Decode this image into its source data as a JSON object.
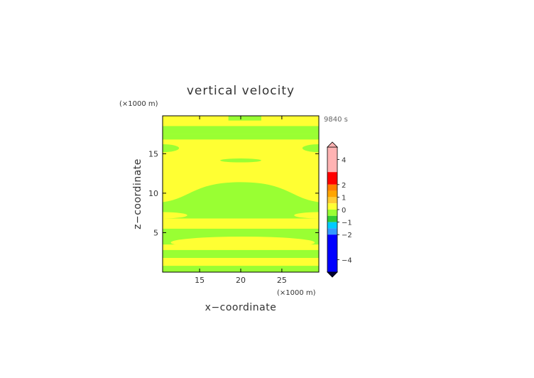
{
  "chart_data": {
    "type": "heatmap",
    "title": "vertical velocity",
    "xlabel": "x−coordinate",
    "ylabel": "z−coordinate",
    "x_unit": "(×1000 m)",
    "y_unit": "(×1000 m)",
    "time": "9840 s",
    "xlim": [
      10.5,
      29.5
    ],
    "ylim": [
      0,
      19.8
    ],
    "x_ticks": [
      15,
      20,
      25
    ],
    "y_ticks": [
      5,
      10,
      15
    ],
    "x_tick_labels": [
      "15",
      "20",
      "25"
    ],
    "y_tick_labels": [
      "5",
      "10",
      "15"
    ],
    "background_level_color": "#ffff33",
    "regions": [
      {
        "level": "green",
        "shape": "band",
        "z": [
          19.2,
          19.8
        ],
        "x": [
          18.5,
          22.5
        ]
      },
      {
        "level": "green",
        "shape": "band",
        "z": [
          17.5,
          18.5
        ],
        "x": [
          10.5,
          29.5
        ]
      },
      {
        "level": "green",
        "shape": "band",
        "z": [
          16.8,
          17.5
        ],
        "x": [
          10.5,
          29.5
        ]
      },
      {
        "level": "green",
        "shape": "lobe",
        "z": [
          15.2,
          16.2
        ],
        "x": [
          10.5,
          12.5
        ]
      },
      {
        "level": "green",
        "shape": "lobe",
        "z": [
          15.2,
          16.2
        ],
        "x": [
          27.5,
          29.5
        ]
      },
      {
        "level": "green",
        "shape": "ellipse",
        "z": [
          13.9,
          14.4
        ],
        "x": [
          17.5,
          22.5
        ]
      },
      {
        "level": "green",
        "shape": "dome",
        "z": [
          6.8,
          11.4
        ],
        "x": [
          10.5,
          29.5
        ]
      },
      {
        "level": "yellow",
        "shape": "lobe",
        "z": [
          6.8,
          7.6
        ],
        "x": [
          10.5,
          13.5
        ]
      },
      {
        "level": "yellow",
        "shape": "lobe",
        "z": [
          6.8,
          7.6
        ],
        "x": [
          26.5,
          29.5
        ]
      },
      {
        "level": "yellow",
        "shape": "ellipse",
        "z": [
          5.5,
          6.8
        ],
        "x": [
          13.5,
          27.0
        ]
      },
      {
        "level": "green",
        "shape": "band",
        "z": [
          3.5,
          5.5
        ],
        "x": [
          10.5,
          29.5
        ]
      },
      {
        "level": "yellow",
        "shape": "ellipse",
        "z": [
          3.0,
          4.5
        ],
        "x": [
          11.5,
          29.0
        ]
      },
      {
        "level": "green",
        "shape": "band",
        "z": [
          1.8,
          2.8
        ],
        "x": [
          10.5,
          29.5
        ]
      },
      {
        "level": "green",
        "shape": "band",
        "z": [
          0.0,
          0.8
        ],
        "x": [
          10.5,
          29.5
        ]
      }
    ],
    "colorbar": {
      "levels": [
        {
          "from": 3.0,
          "to": 5.0,
          "color": "#ffb3b3"
        },
        {
          "from": 2.0,
          "to": 3.0,
          "color": "#ff0000"
        },
        {
          "from": 1.5,
          "to": 2.0,
          "color": "#ff7f00"
        },
        {
          "from": 1.0,
          "to": 1.5,
          "color": "#ffa500"
        },
        {
          "from": 0.5,
          "to": 1.0,
          "color": "#ffcc33"
        },
        {
          "from": 0.0,
          "to": 0.5,
          "color": "#ffff33"
        },
        {
          "from": -0.5,
          "to": 0.0,
          "color": "#99ff33"
        },
        {
          "from": -1.0,
          "to": -0.5,
          "color": "#33cc33"
        },
        {
          "from": -1.5,
          "to": -1.0,
          "color": "#00ccff"
        },
        {
          "from": -2.0,
          "to": -1.5,
          "color": "#3399ff"
        },
        {
          "from": -5.0,
          "to": -2.0,
          "color": "#0000ff"
        }
      ],
      "tick_values": [
        4,
        2,
        1,
        0,
        -1,
        -2,
        -4
      ],
      "tick_labels": [
        "4",
        "2",
        "1",
        "0",
        "−1",
        "−2",
        "−4"
      ]
    }
  }
}
